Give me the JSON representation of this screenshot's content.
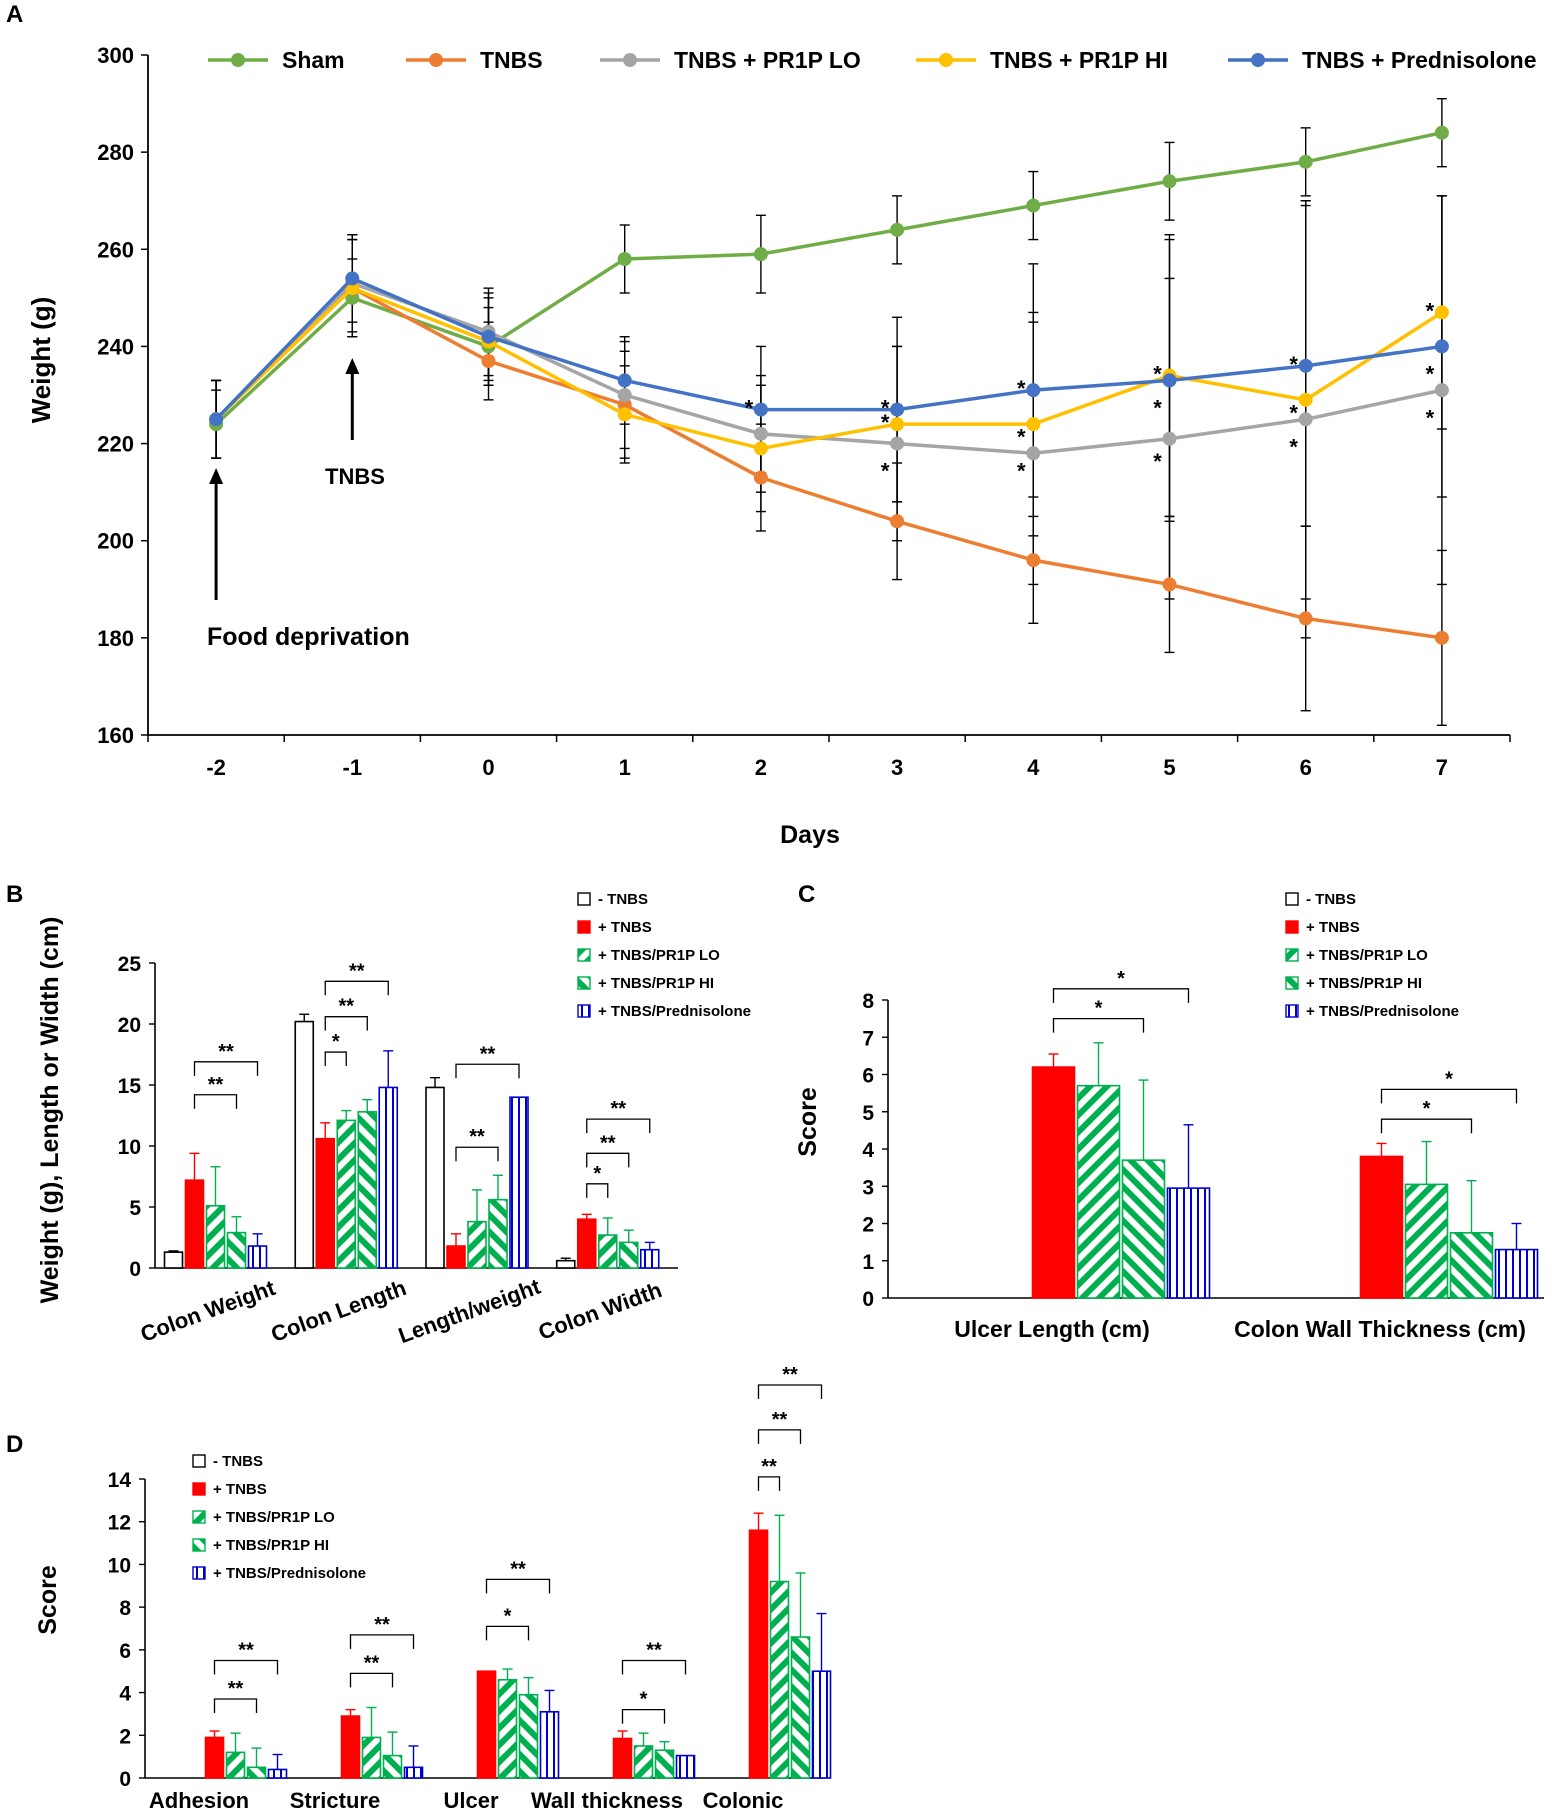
{
  "colors": {
    "sham": "#70ad47",
    "tnbs": "#ed7d31",
    "lo": "#a5a5a5",
    "hi": "#ffc000",
    "pred": "#4472c4",
    "red": "#ff0000",
    "green": "#00b050",
    "blue": "#0000cc",
    "axis": "#000000"
  },
  "chart_data": [
    {
      "panel": "A",
      "type": "line",
      "title": "",
      "xlabel": "Days",
      "ylabel": "Weight (g)",
      "categories": [
        "-2",
        "-1",
        "0",
        "1",
        "2",
        "3",
        "4",
        "5",
        "6",
        "7"
      ],
      "x": [
        -2,
        -1,
        0,
        1,
        2,
        3,
        4,
        5,
        6,
        7
      ],
      "ylim": [
        160,
        300
      ],
      "yticks": [
        "160",
        "180",
        "200",
        "220",
        "240",
        "260",
        "280",
        "300"
      ],
      "series": [
        {
          "name": "Sham",
          "color_key": "sham",
          "values": [
            224,
            250,
            240,
            258,
            259,
            264,
            269,
            274,
            278,
            284
          ],
          "errors": [
            7,
            8,
            8,
            7,
            8,
            7,
            7,
            8,
            7,
            7
          ]
        },
        {
          "name": "TNBS",
          "color_key": "tnbs",
          "values": [
            225,
            252,
            237,
            228,
            213,
            204,
            196,
            191,
            184,
            180
          ],
          "errors": [
            8,
            10,
            8,
            11,
            11,
            12,
            13,
            14,
            19,
            18
          ]
        },
        {
          "name": "TNBS + PR1P LO",
          "color_key": "lo",
          "values": [
            225,
            253,
            243,
            230,
            222,
            220,
            218,
            221,
            225,
            231
          ],
          "errors": [
            8,
            10,
            9,
            11,
            12,
            20,
            27,
            33,
            45,
            40
          ]
        },
        {
          "name": "TNBS + PR1P HI",
          "color_key": "hi",
          "values": [
            225,
            252,
            241,
            226,
            219,
            224,
            224,
            234,
            229,
            247
          ],
          "errors": [
            8,
            10,
            9,
            10,
            13,
            16,
            23,
            29,
            41,
            24
          ]
        },
        {
          "name": "TNBS + Prednisolone",
          "color_key": "pred",
          "values": [
            225,
            254,
            242,
            233,
            227,
            227,
            231,
            233,
            236,
            240
          ],
          "errors": [
            8,
            9,
            9,
            9,
            13,
            19,
            26,
            29,
            33,
            31
          ]
        }
      ],
      "significance": [
        {
          "x": 2,
          "y": 227,
          "label": "*"
        },
        {
          "x": 3,
          "y": 227,
          "label": "*"
        },
        {
          "x": 3,
          "y": 224,
          "label": "*"
        },
        {
          "x": 3,
          "y": 214,
          "label": "*"
        },
        {
          "x": 4,
          "y": 231,
          "label": "*"
        },
        {
          "x": 4,
          "y": 221,
          "label": "*"
        },
        {
          "x": 4,
          "y": 214,
          "label": "*"
        },
        {
          "x": 5,
          "y": 234,
          "label": "*"
        },
        {
          "x": 5,
          "y": 227,
          "label": "*"
        },
        {
          "x": 5,
          "y": 216,
          "label": "*"
        },
        {
          "x": 6,
          "y": 236,
          "label": "*"
        },
        {
          "x": 6,
          "y": 226,
          "label": "*"
        },
        {
          "x": 6,
          "y": 219,
          "label": "*"
        },
        {
          "x": 7,
          "y": 247,
          "label": "*"
        },
        {
          "x": 7,
          "y": 234,
          "label": "*"
        },
        {
          "x": 7,
          "y": 225,
          "label": "*"
        }
      ],
      "annotations": [
        {
          "text": "Food deprivation",
          "x": -2
        },
        {
          "text": "TNBS",
          "x": -1
        }
      ]
    },
    {
      "panel": "B",
      "type": "bar",
      "ylabel": "Weight (g), Length or Width (cm)",
      "ylim": [
        0,
        25
      ],
      "yticks": [
        "0",
        "5",
        "10",
        "15",
        "20",
        "25"
      ],
      "categories": [
        "Colon Weight",
        "Colon Length",
        "Length/weight",
        "Colon Width"
      ],
      "series": [
        {
          "name": "- TNBS",
          "values": [
            1.3,
            20.2,
            14.8,
            0.6
          ],
          "errors": [
            0.1,
            0.6,
            0.8,
            0.2
          ]
        },
        {
          "name": "+ TNBS",
          "values": [
            7.2,
            10.6,
            1.8,
            4.0
          ],
          "errors": [
            2.2,
            1.3,
            1.0,
            0.4
          ]
        },
        {
          "name": "+ TNBS/PR1P LO",
          "values": [
            5.1,
            12.1,
            3.8,
            2.7
          ],
          "errors": [
            3.2,
            0.8,
            2.6,
            1.4
          ]
        },
        {
          "name": "+ TNBS/PR1P HI",
          "values": [
            2.9,
            12.8,
            5.6,
            2.1
          ],
          "errors": [
            1.3,
            1.0,
            2.0,
            1.0
          ]
        },
        {
          "name": "+ TNBS/Prednisolone",
          "values": [
            1.8,
            14.8,
            14.0,
            1.5
          ],
          "errors": [
            1.0,
            3.0,
            0.0,
            0.6
          ]
        }
      ],
      "significance": [
        {
          "category": "Colon Weight",
          "from": 1,
          "to": 3,
          "label": "**",
          "level": 14.2
        },
        {
          "category": "Colon Weight",
          "from": 1,
          "to": 4,
          "label": "**",
          "level": 16.9
        },
        {
          "category": "Colon Length",
          "from": 1,
          "to": 2,
          "label": "*",
          "level": 17.7
        },
        {
          "category": "Colon Length",
          "from": 1,
          "to": 3,
          "label": "**",
          "level": 20.6
        },
        {
          "category": "Colon Length",
          "from": 1,
          "to": 4,
          "label": "**",
          "level": 23.5
        },
        {
          "category": "Length/weight",
          "from": 1,
          "to": 3,
          "label": "**",
          "level": 9.9
        },
        {
          "category": "Length/weight",
          "from": 1,
          "to": 4,
          "label": "**",
          "level": 16.7
        },
        {
          "category": "Colon Width",
          "from": 1,
          "to": 2,
          "label": "*",
          "level": 6.9
        },
        {
          "category": "Colon Width",
          "from": 1,
          "to": 3,
          "label": "**",
          "level": 9.4
        },
        {
          "category": "Colon Width",
          "from": 1,
          "to": 4,
          "label": "**",
          "level": 12.2
        }
      ]
    },
    {
      "panel": "C",
      "type": "bar",
      "ylabel": "Score",
      "ylim": [
        0,
        8
      ],
      "yticks": [
        "0",
        "1",
        "2",
        "3",
        "4",
        "5",
        "6",
        "7",
        "8"
      ],
      "categories": [
        "Ulcer Length (cm)",
        "Colon Wall Thickness (cm)"
      ],
      "series": [
        {
          "name": "- TNBS",
          "values": [
            0,
            0
          ],
          "errors": [
            0,
            0
          ]
        },
        {
          "name": "+ TNBS",
          "values": [
            6.2,
            3.8
          ],
          "errors": [
            0.35,
            0.35
          ]
        },
        {
          "name": "+ TNBS/PR1P LO",
          "values": [
            5.7,
            3.05
          ],
          "errors": [
            1.15,
            1.15
          ]
        },
        {
          "name": "+ TNBS/PR1P HI",
          "values": [
            3.7,
            1.75
          ],
          "errors": [
            2.15,
            1.4
          ]
        },
        {
          "name": "+ TNBS/Prednisolone",
          "values": [
            2.95,
            1.3
          ],
          "errors": [
            1.7,
            0.7
          ]
        }
      ],
      "significance": [
        {
          "category": "Ulcer Length (cm)",
          "from": 1,
          "to": 3,
          "label": "*",
          "level": 7.5
        },
        {
          "category": "Ulcer Length (cm)",
          "from": 1,
          "to": 4,
          "label": "*",
          "level": 8.3
        },
        {
          "category": "Colon Wall Thickness (cm)",
          "from": 1,
          "to": 3,
          "label": "*",
          "level": 4.8
        },
        {
          "category": "Colon Wall Thickness (cm)",
          "from": 1,
          "to": 4,
          "label": "*",
          "level": 5.6
        }
      ]
    },
    {
      "panel": "D",
      "type": "bar",
      "ylabel": "Score",
      "ylim": [
        0,
        14
      ],
      "yticks": [
        "0",
        "2",
        "4",
        "6",
        "8",
        "10",
        "12",
        "14"
      ],
      "categories": [
        "Adhesion",
        "Stricture",
        "Ulcer",
        "Wall thickness",
        "Colonic"
      ],
      "series": [
        {
          "name": "- TNBS",
          "values": [
            0,
            0,
            0,
            0,
            0
          ],
          "errors": [
            0,
            0,
            0,
            0,
            0
          ]
        },
        {
          "name": "+ TNBS",
          "values": [
            1.9,
            2.9,
            5.0,
            1.85,
            11.6
          ],
          "errors": [
            0.3,
            0.3,
            0.0,
            0.35,
            0.8
          ]
        },
        {
          "name": "+ TNBS/PR1P LO",
          "values": [
            1.2,
            1.9,
            4.6,
            1.5,
            9.2
          ],
          "errors": [
            0.9,
            1.4,
            0.5,
            0.6,
            3.1
          ]
        },
        {
          "name": "+ TNBS/PR1P HI",
          "values": [
            0.5,
            1.05,
            3.9,
            1.3,
            6.6
          ],
          "errors": [
            0.9,
            1.1,
            0.8,
            0.4,
            3.0
          ]
        },
        {
          "name": "+ TNBS/Prednisolone",
          "values": [
            0.4,
            0.5,
            3.1,
            1.05,
            5.0
          ],
          "errors": [
            0.7,
            1.0,
            1.0,
            0.0,
            2.7
          ]
        }
      ],
      "significance": [
        {
          "category": "Adhesion",
          "from": 1,
          "to": 3,
          "label": "**",
          "level": 3.7
        },
        {
          "category": "Adhesion",
          "from": 1,
          "to": 4,
          "label": "**",
          "level": 5.5
        },
        {
          "category": "Stricture",
          "from": 1,
          "to": 3,
          "label": "**",
          "level": 4.9
        },
        {
          "category": "Stricture",
          "from": 1,
          "to": 4,
          "label": "**",
          "level": 6.7
        },
        {
          "category": "Ulcer",
          "from": 1,
          "to": 3,
          "label": "*",
          "level": 7.1
        },
        {
          "category": "Ulcer",
          "from": 1,
          "to": 4,
          "label": "**",
          "level": 9.3
        },
        {
          "category": "Wall thickness",
          "from": 1,
          "to": 3,
          "label": "*",
          "level": 3.2
        },
        {
          "category": "Wall thickness",
          "from": 1,
          "to": 4,
          "label": "**",
          "level": 5.5
        },
        {
          "category": "Colonic",
          "from": 1,
          "to": 2,
          "label": "**",
          "level": 14.1
        },
        {
          "category": "Colonic",
          "from": 1,
          "to": 3,
          "label": "**",
          "level": 16.3
        },
        {
          "category": "Colonic",
          "from": 1,
          "to": 4,
          "label": "**",
          "level": 18.4
        }
      ]
    }
  ],
  "panel_labels": {
    "a": "A",
    "b": "B",
    "c": "C",
    "d": "D"
  }
}
